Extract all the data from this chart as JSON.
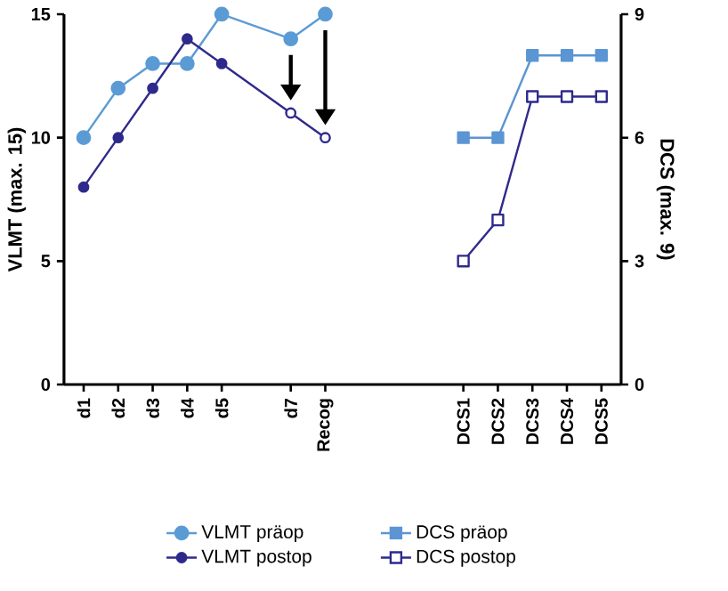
{
  "chart_data": {
    "type": "line",
    "ylabel": "VLMT  (max. 15)",
    "y2label": "DCS  (max. 9)",
    "categories": [
      "d1",
      "d2",
      "d3",
      "d4",
      "d5",
      null,
      "d7",
      "Recog",
      null,
      null,
      null,
      "DCS1",
      "DCS2",
      "DCS3",
      "DCS4",
      "DCS5"
    ],
    "ylim": [
      0,
      15
    ],
    "yticks": [
      0,
      5,
      10,
      15
    ],
    "y2lim": [
      0,
      9
    ],
    "y2ticks": [
      0,
      3,
      6,
      9
    ],
    "legend": "bottom",
    "series": [
      {
        "name": "VLMT präop",
        "color": "#5b9bd5",
        "marker": "circle",
        "values": [
          10,
          12,
          13,
          13,
          15,
          null,
          14,
          15,
          null,
          null,
          null,
          null,
          null,
          null,
          null,
          null
        ]
      },
      {
        "name": "VLMT postop",
        "color": "#2e2a8c",
        "marker": "circle",
        "values": [
          8,
          10,
          12,
          14,
          13,
          null,
          11,
          10,
          null,
          null,
          null,
          null,
          null,
          null,
          null,
          null
        ]
      },
      {
        "name": "DCS präop",
        "color": "#5b95d3",
        "marker": "square",
        "axis": "y2",
        "values": [
          null,
          null,
          null,
          null,
          null,
          null,
          null,
          null,
          null,
          null,
          null,
          6,
          6,
          8,
          8,
          8
        ]
      },
      {
        "name": "DCS postop",
        "color": "#2e2a8c",
        "marker": "square",
        "axis": "y2",
        "values": [
          null,
          null,
          null,
          null,
          null,
          null,
          null,
          null,
          null,
          null,
          null,
          3,
          4,
          7,
          7,
          7
        ]
      }
    ]
  }
}
